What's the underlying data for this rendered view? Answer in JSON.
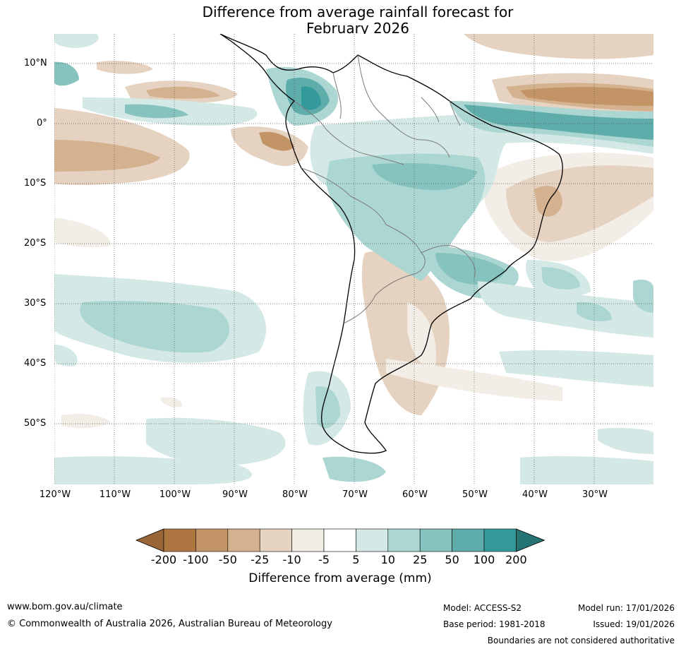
{
  "title": {
    "line1": "Difference from average rainfall forecast for",
    "line2": "February 2026"
  },
  "axes": {
    "lat_labels": [
      "10°N",
      "0°",
      "10°S",
      "20°S",
      "30°S",
      "40°S",
      "50°S"
    ],
    "lon_labels": [
      "120°W",
      "110°W",
      "100°W",
      "90°W",
      "80°W",
      "70°W",
      "60°W",
      "50°W",
      "40°W",
      "30°W"
    ]
  },
  "colorbar": {
    "labels": [
      "-200",
      "-100",
      "-50",
      "-25",
      "-10",
      "-5",
      "5",
      "10",
      "25",
      "50",
      "100",
      "200"
    ],
    "colors": [
      "#9a6636",
      "#ae7741",
      "#c39566",
      "#d4b28f",
      "#e6d2c0",
      "#f2ede6",
      "#ffffff",
      "#d4e9e6",
      "#abd6d2",
      "#86c3bf",
      "#5eadaa",
      "#34999a",
      "#267373"
    ],
    "title": "Difference from average (mm)"
  },
  "footer": {
    "url": "www.bom.gov.au/climate",
    "copyright": "© Commonwealth of Australia 2026, Australian Bureau of Meteorology",
    "model": "Model: ACCESS-S2",
    "base_period": "Base period: 1981-2018",
    "model_run": "Model run: 17/01/2026",
    "issued": "Issued: 19/01/2026",
    "disclaimer": "Boundaries are not considered authoritative"
  }
}
